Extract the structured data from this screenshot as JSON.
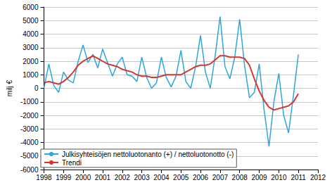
{
  "chart_data": {
    "type": "line",
    "y_label": "milj €",
    "x": [
      1998,
      1998.25,
      1998.5,
      1998.75,
      1999,
      1999.25,
      1999.5,
      1999.75,
      2000,
      2000.25,
      2000.5,
      2000.75,
      2001,
      2001.25,
      2001.5,
      2001.75,
      2002,
      2002.25,
      2002.5,
      2002.75,
      2003,
      2003.25,
      2003.5,
      2003.75,
      2004,
      2004.25,
      2004.5,
      2004.75,
      2005,
      2005.25,
      2005.5,
      2005.75,
      2006,
      2006.25,
      2006.5,
      2006.75,
      2007,
      2007.25,
      2007.5,
      2007.75,
      2008,
      2008.25,
      2008.5,
      2008.75,
      2009,
      2009.25,
      2009.5,
      2009.75,
      2010,
      2010.25,
      2010.5,
      2010.75,
      2011
    ],
    "series": [
      {
        "name": "Julkisyhteisöjen nettoluotonanto (+) / nettoluotonotto (-)",
        "color": "#2ea6dc",
        "values": [
          0,
          1800,
          200,
          -300,
          1200,
          600,
          400,
          2000,
          3200,
          1900,
          2500,
          1500,
          2900,
          1900,
          900,
          1800,
          2300,
          1000,
          900,
          500,
          2300,
          800,
          0,
          400,
          2300,
          800,
          100,
          900,
          2800,
          500,
          0,
          1600,
          3900,
          1200,
          0,
          2400,
          5300,
          1600,
          700,
          2300,
          5100,
          1700,
          -700,
          -300,
          1800,
          -1600,
          -4300,
          -1000,
          1100,
          -2000,
          -3300,
          -500,
          2500
        ]
      },
      {
        "name": "Trendi",
        "color": "#d9362b",
        "values": [
          400,
          500,
          400,
          300,
          500,
          800,
          1200,
          1700,
          2000,
          2200,
          2400,
          2200,
          2000,
          1800,
          1700,
          1600,
          1400,
          1300,
          1200,
          1000,
          900,
          900,
          800,
          800,
          900,
          1000,
          1000,
          1000,
          1000,
          1200,
          1400,
          1600,
          1700,
          1700,
          1800,
          2100,
          2400,
          2400,
          2300,
          2300,
          2300,
          2200,
          1700,
          700,
          -200,
          -900,
          -1400,
          -1600,
          -1500,
          -1400,
          -1300,
          -1000,
          -400
        ]
      }
    ],
    "xlim": [
      1998,
      2012
    ],
    "xticks": [
      1998,
      1999,
      2000,
      2001,
      2002,
      2003,
      2004,
      2005,
      2006,
      2007,
      2008,
      2009,
      2010,
      2011,
      2012
    ],
    "ylim": [
      -6000,
      6000
    ],
    "yticks": [
      -6000,
      -5000,
      -4000,
      -3000,
      -2000,
      -1000,
      0,
      1000,
      2000,
      3000,
      4000,
      5000,
      6000
    ],
    "grid": true,
    "legend": "lower left"
  }
}
